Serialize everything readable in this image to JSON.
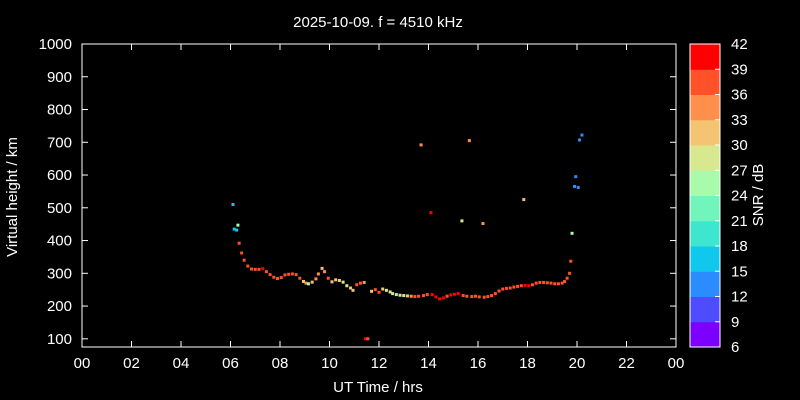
{
  "colors": {
    "background": "#000000",
    "axes": "#ffffff",
    "colorbar": [
      "#7b00ff",
      "#4d4dff",
      "#2a8cff",
      "#10c8ee",
      "#3ee6cf",
      "#72f5bd",
      "#a8fbaa",
      "#d7e88e",
      "#f4c472",
      "#ff8f4d",
      "#ff5228",
      "#ff0000"
    ]
  },
  "chart_data": {
    "type": "scatter",
    "title": "2025-10-09. f = 4510 kHz",
    "xlabel": "UT Time / hrs",
    "ylabel": "Virtual height / km",
    "colorbar_label": "SNR / dB",
    "xlim": [
      0,
      24
    ],
    "ylim": [
      75,
      1000
    ],
    "xticks": [
      "00",
      "02",
      "04",
      "06",
      "08",
      "10",
      "12",
      "14",
      "16",
      "18",
      "20",
      "22",
      "00"
    ],
    "yticks": [
      100,
      200,
      300,
      400,
      500,
      600,
      700,
      800,
      900,
      1000
    ],
    "colorbar_ticks": [
      6,
      9,
      12,
      15,
      18,
      21,
      24,
      27,
      30,
      33,
      36,
      39,
      42
    ],
    "clim": [
      6,
      42
    ],
    "points": [
      [
        6.1,
        510,
        15
      ],
      [
        6.15,
        435,
        15
      ],
      [
        6.25,
        432,
        16
      ],
      [
        6.3,
        447,
        24
      ],
      [
        6.35,
        392,
        37
      ],
      [
        6.45,
        362,
        38
      ],
      [
        6.55,
        340,
        38
      ],
      [
        6.7,
        322,
        38
      ],
      [
        6.85,
        313,
        38
      ],
      [
        7.0,
        312,
        38
      ],
      [
        7.15,
        312,
        38
      ],
      [
        7.3,
        314,
        39
      ],
      [
        7.45,
        305,
        38
      ],
      [
        7.6,
        296,
        37
      ],
      [
        7.75,
        288,
        37
      ],
      [
        7.9,
        284,
        38
      ],
      [
        8.05,
        287,
        37
      ],
      [
        8.2,
        295,
        36
      ],
      [
        8.35,
        297,
        36
      ],
      [
        8.5,
        298,
        37
      ],
      [
        8.65,
        296,
        37
      ],
      [
        8.8,
        285,
        36
      ],
      [
        8.95,
        275,
        32
      ],
      [
        9.05,
        270,
        34
      ],
      [
        9.15,
        268,
        26
      ],
      [
        9.3,
        273,
        31
      ],
      [
        9.45,
        283,
        33
      ],
      [
        9.55,
        298,
        33
      ],
      [
        9.7,
        315,
        32
      ],
      [
        9.8,
        305,
        34
      ],
      [
        9.95,
        285,
        36
      ],
      [
        10.1,
        274,
        30
      ],
      [
        10.25,
        280,
        31
      ],
      [
        10.4,
        278,
        30
      ],
      [
        10.55,
        273,
        29
      ],
      [
        10.7,
        262,
        29
      ],
      [
        10.85,
        255,
        30
      ],
      [
        10.95,
        248,
        32
      ],
      [
        11.1,
        265,
        36
      ],
      [
        11.25,
        270,
        37
      ],
      [
        11.4,
        272,
        34
      ],
      [
        11.45,
        100,
        39
      ],
      [
        11.55,
        100,
        38
      ],
      [
        11.7,
        245,
        32
      ],
      [
        11.85,
        250,
        38
      ],
      [
        12.0,
        242,
        36
      ],
      [
        12.15,
        252,
        32
      ],
      [
        12.3,
        248,
        29
      ],
      [
        12.45,
        243,
        29
      ],
      [
        12.55,
        238,
        27
      ],
      [
        12.7,
        235,
        26
      ],
      [
        12.85,
        233,
        28
      ],
      [
        13.0,
        232,
        29
      ],
      [
        13.15,
        231,
        32
      ],
      [
        13.3,
        230,
        35
      ],
      [
        13.45,
        229,
        37
      ],
      [
        13.6,
        230,
        36
      ],
      [
        13.7,
        692,
        33
      ],
      [
        13.8,
        232,
        37
      ],
      [
        13.95,
        235,
        38
      ],
      [
        14.1,
        485,
        40
      ],
      [
        14.15,
        235,
        39
      ],
      [
        14.3,
        228,
        39
      ],
      [
        14.45,
        222,
        39
      ],
      [
        14.6,
        225,
        39
      ],
      [
        14.75,
        230,
        38
      ],
      [
        14.9,
        234,
        39
      ],
      [
        15.05,
        236,
        40
      ],
      [
        15.2,
        238,
        39
      ],
      [
        15.35,
        460,
        29
      ],
      [
        15.4,
        232,
        38
      ],
      [
        15.55,
        230,
        37
      ],
      [
        15.65,
        705,
        35
      ],
      [
        15.75,
        229,
        38
      ],
      [
        15.9,
        230,
        38
      ],
      [
        16.05,
        228,
        37
      ],
      [
        16.2,
        452,
        33
      ],
      [
        16.25,
        227,
        37
      ],
      [
        16.4,
        229,
        37
      ],
      [
        16.55,
        232,
        37
      ],
      [
        16.7,
        238,
        37
      ],
      [
        16.85,
        246,
        37
      ],
      [
        17.0,
        252,
        36
      ],
      [
        17.15,
        254,
        36
      ],
      [
        17.3,
        255,
        37
      ],
      [
        17.45,
        258,
        37
      ],
      [
        17.6,
        260,
        38
      ],
      [
        17.75,
        262,
        38
      ],
      [
        17.85,
        525,
        30
      ],
      [
        17.9,
        263,
        39
      ],
      [
        18.05,
        262,
        39
      ],
      [
        18.2,
        265,
        38
      ],
      [
        18.35,
        270,
        38
      ],
      [
        18.5,
        272,
        38
      ],
      [
        18.65,
        272,
        37
      ],
      [
        18.8,
        271,
        38
      ],
      [
        18.95,
        270,
        37
      ],
      [
        19.1,
        268,
        37
      ],
      [
        19.25,
        268,
        37
      ],
      [
        19.4,
        270,
        36
      ],
      [
        19.5,
        275,
        36
      ],
      [
        19.6,
        285,
        37
      ],
      [
        19.7,
        300,
        37
      ],
      [
        19.75,
        337,
        37
      ],
      [
        19.8,
        422,
        26
      ],
      [
        19.9,
        565,
        14
      ],
      [
        19.95,
        595,
        13
      ],
      [
        20.05,
        562,
        13
      ],
      [
        20.1,
        707,
        13
      ],
      [
        20.2,
        722,
        14
      ]
    ],
    "grid": false,
    "legend": "colorbar-right"
  }
}
